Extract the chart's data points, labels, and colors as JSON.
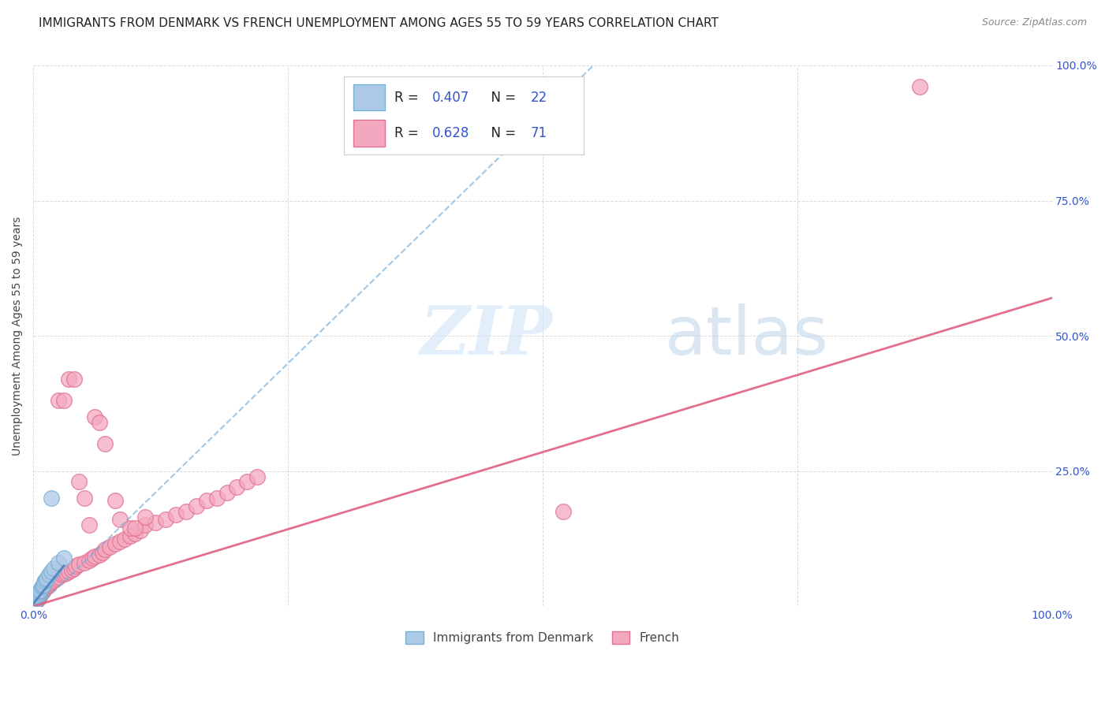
{
  "title": "IMMIGRANTS FROM DENMARK VS FRENCH UNEMPLOYMENT AMONG AGES 55 TO 59 YEARS CORRELATION CHART",
  "source": "Source: ZipAtlas.com",
  "ylabel": "Unemployment Among Ages 55 to 59 years",
  "xlim": [
    0.0,
    1.0
  ],
  "ylim": [
    0.0,
    1.0
  ],
  "watermark_zip": "ZIP",
  "watermark_atlas": "atlas",
  "denmark_color": "#adc9e8",
  "denmark_edge": "#7aafd4",
  "french_color": "#f4a8bf",
  "french_edge": "#e07090",
  "trend_denmark_color": "#7ab0d8",
  "trend_french_color": "#e06080",
  "r_denmark": 0.407,
  "n_denmark": 22,
  "r_french": 0.628,
  "n_french": 71,
  "legend_label_denmark": "Immigrants from Denmark",
  "legend_label_french": "French",
  "dk_x": [
    0.001,
    0.002,
    0.003,
    0.003,
    0.004,
    0.004,
    0.005,
    0.005,
    0.006,
    0.007,
    0.008,
    0.009,
    0.01,
    0.011,
    0.012,
    0.013,
    0.015,
    0.018,
    0.02,
    0.025,
    0.018,
    0.03
  ],
  "dk_y": [
    0.008,
    0.01,
    0.012,
    0.015,
    0.018,
    0.02,
    0.022,
    0.025,
    0.028,
    0.03,
    0.035,
    0.038,
    0.04,
    0.045,
    0.048,
    0.052,
    0.058,
    0.065,
    0.07,
    0.08,
    0.2,
    0.09
  ],
  "fr_x": [
    0.001,
    0.002,
    0.003,
    0.004,
    0.005,
    0.005,
    0.006,
    0.007,
    0.008,
    0.009,
    0.01,
    0.01,
    0.012,
    0.013,
    0.015,
    0.016,
    0.018,
    0.02,
    0.022,
    0.025,
    0.028,
    0.03,
    0.032,
    0.035,
    0.038,
    0.04,
    0.042,
    0.045,
    0.05,
    0.055,
    0.058,
    0.06,
    0.065,
    0.068,
    0.07,
    0.075,
    0.08,
    0.085,
    0.09,
    0.095,
    0.1,
    0.105,
    0.11,
    0.12,
    0.13,
    0.14,
    0.15,
    0.16,
    0.17,
    0.18,
    0.19,
    0.2,
    0.21,
    0.22,
    0.06,
    0.065,
    0.07,
    0.035,
    0.04,
    0.025,
    0.03,
    0.045,
    0.05,
    0.055,
    0.08,
    0.085,
    0.095,
    0.1,
    0.11,
    0.52,
    0.87
  ],
  "fr_y": [
    0.005,
    0.008,
    0.01,
    0.012,
    0.015,
    0.018,
    0.02,
    0.022,
    0.025,
    0.028,
    0.03,
    0.032,
    0.035,
    0.038,
    0.04,
    0.042,
    0.045,
    0.048,
    0.052,
    0.055,
    0.058,
    0.06,
    0.062,
    0.065,
    0.068,
    0.07,
    0.075,
    0.078,
    0.08,
    0.085,
    0.09,
    0.092,
    0.095,
    0.1,
    0.105,
    0.11,
    0.115,
    0.12,
    0.125,
    0.13,
    0.135,
    0.14,
    0.15,
    0.155,
    0.16,
    0.17,
    0.175,
    0.185,
    0.195,
    0.2,
    0.21,
    0.22,
    0.23,
    0.24,
    0.35,
    0.34,
    0.3,
    0.42,
    0.42,
    0.38,
    0.38,
    0.23,
    0.2,
    0.15,
    0.195,
    0.16,
    0.145,
    0.145,
    0.165,
    0.175,
    0.96
  ],
  "trend_dk_x0": 0.0,
  "trend_dk_y0": -0.01,
  "trend_dk_x1": 0.55,
  "trend_dk_y1": 1.0,
  "trend_fr_x0": 0.0,
  "trend_fr_y0": 0.0,
  "trend_fr_x1": 1.0,
  "trend_fr_y1": 0.57,
  "grid_color": "#cccccc",
  "background_color": "#ffffff",
  "title_fontsize": 11,
  "axis_label_fontsize": 10,
  "tick_fontsize": 10,
  "value_color": "#3355cc"
}
